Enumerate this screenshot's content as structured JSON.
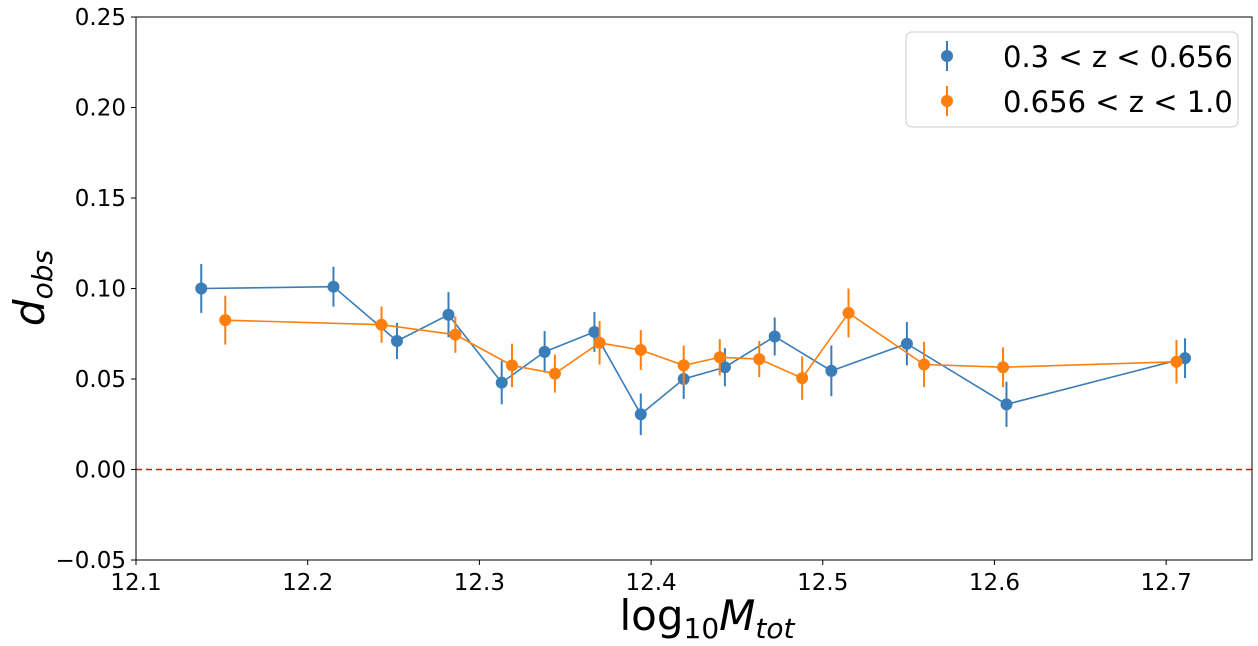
{
  "chart_data": {
    "type": "scatter",
    "title": "",
    "xlabel_main": "log",
    "xlabel_sub": "10",
    "xlabel_var": "M",
    "xlabel_var_sub": "tot",
    "ylabel_var": "d",
    "ylabel_sub": "obs",
    "xlim": [
      12.1,
      12.75
    ],
    "ylim": [
      -0.05,
      0.25
    ],
    "xticks": [
      "12.1",
      "12.2",
      "12.3",
      "12.4",
      "12.5",
      "12.6",
      "12.7"
    ],
    "yticks": [
      "−0.05",
      "0.00",
      "0.05",
      "0.10",
      "0.15",
      "0.20",
      "0.25"
    ],
    "reference_line": {
      "y": 0.0,
      "color": "#ff0000",
      "style": "dashed"
    },
    "legend_position": "top-right",
    "series": [
      {
        "name": "0.3 < z < 0.656",
        "color": "#3a7db8",
        "points": [
          {
            "x": 12.138,
            "y": 0.1,
            "err": 0.0135
          },
          {
            "x": 12.215,
            "y": 0.101,
            "err": 0.011
          },
          {
            "x": 12.252,
            "y": 0.071,
            "err": 0.01
          },
          {
            "x": 12.282,
            "y": 0.0855,
            "err": 0.0125
          },
          {
            "x": 12.313,
            "y": 0.048,
            "err": 0.012
          },
          {
            "x": 12.338,
            "y": 0.065,
            "err": 0.0115
          },
          {
            "x": 12.367,
            "y": 0.076,
            "err": 0.011
          },
          {
            "x": 12.394,
            "y": 0.0305,
            "err": 0.0115
          },
          {
            "x": 12.419,
            "y": 0.05,
            "err": 0.011
          },
          {
            "x": 12.443,
            "y": 0.0565,
            "err": 0.0105
          },
          {
            "x": 12.472,
            "y": 0.0735,
            "err": 0.0105
          },
          {
            "x": 12.505,
            "y": 0.0545,
            "err": 0.014
          },
          {
            "x": 12.549,
            "y": 0.0695,
            "err": 0.012
          },
          {
            "x": 12.607,
            "y": 0.036,
            "err": 0.0125
          },
          {
            "x": 12.711,
            "y": 0.0615,
            "err": 0.011
          }
        ]
      },
      {
        "name": "0.656 < z < 1.0",
        "color": "#ff7f0e",
        "points": [
          {
            "x": 12.152,
            "y": 0.0825,
            "err": 0.0135
          },
          {
            "x": 12.243,
            "y": 0.08,
            "err": 0.01
          },
          {
            "x": 12.286,
            "y": 0.0745,
            "err": 0.01
          },
          {
            "x": 12.319,
            "y": 0.0575,
            "err": 0.012
          },
          {
            "x": 12.344,
            "y": 0.053,
            "err": 0.0105
          },
          {
            "x": 12.37,
            "y": 0.07,
            "err": 0.012
          },
          {
            "x": 12.394,
            "y": 0.066,
            "err": 0.011
          },
          {
            "x": 12.419,
            "y": 0.0575,
            "err": 0.011
          },
          {
            "x": 12.44,
            "y": 0.062,
            "err": 0.01
          },
          {
            "x": 12.463,
            "y": 0.061,
            "err": 0.01
          },
          {
            "x": 12.488,
            "y": 0.0505,
            "err": 0.012
          },
          {
            "x": 12.515,
            "y": 0.0865,
            "err": 0.0135
          },
          {
            "x": 12.559,
            "y": 0.058,
            "err": 0.0125
          },
          {
            "x": 12.605,
            "y": 0.0565,
            "err": 0.011
          },
          {
            "x": 12.706,
            "y": 0.0595,
            "err": 0.012
          }
        ]
      }
    ]
  }
}
